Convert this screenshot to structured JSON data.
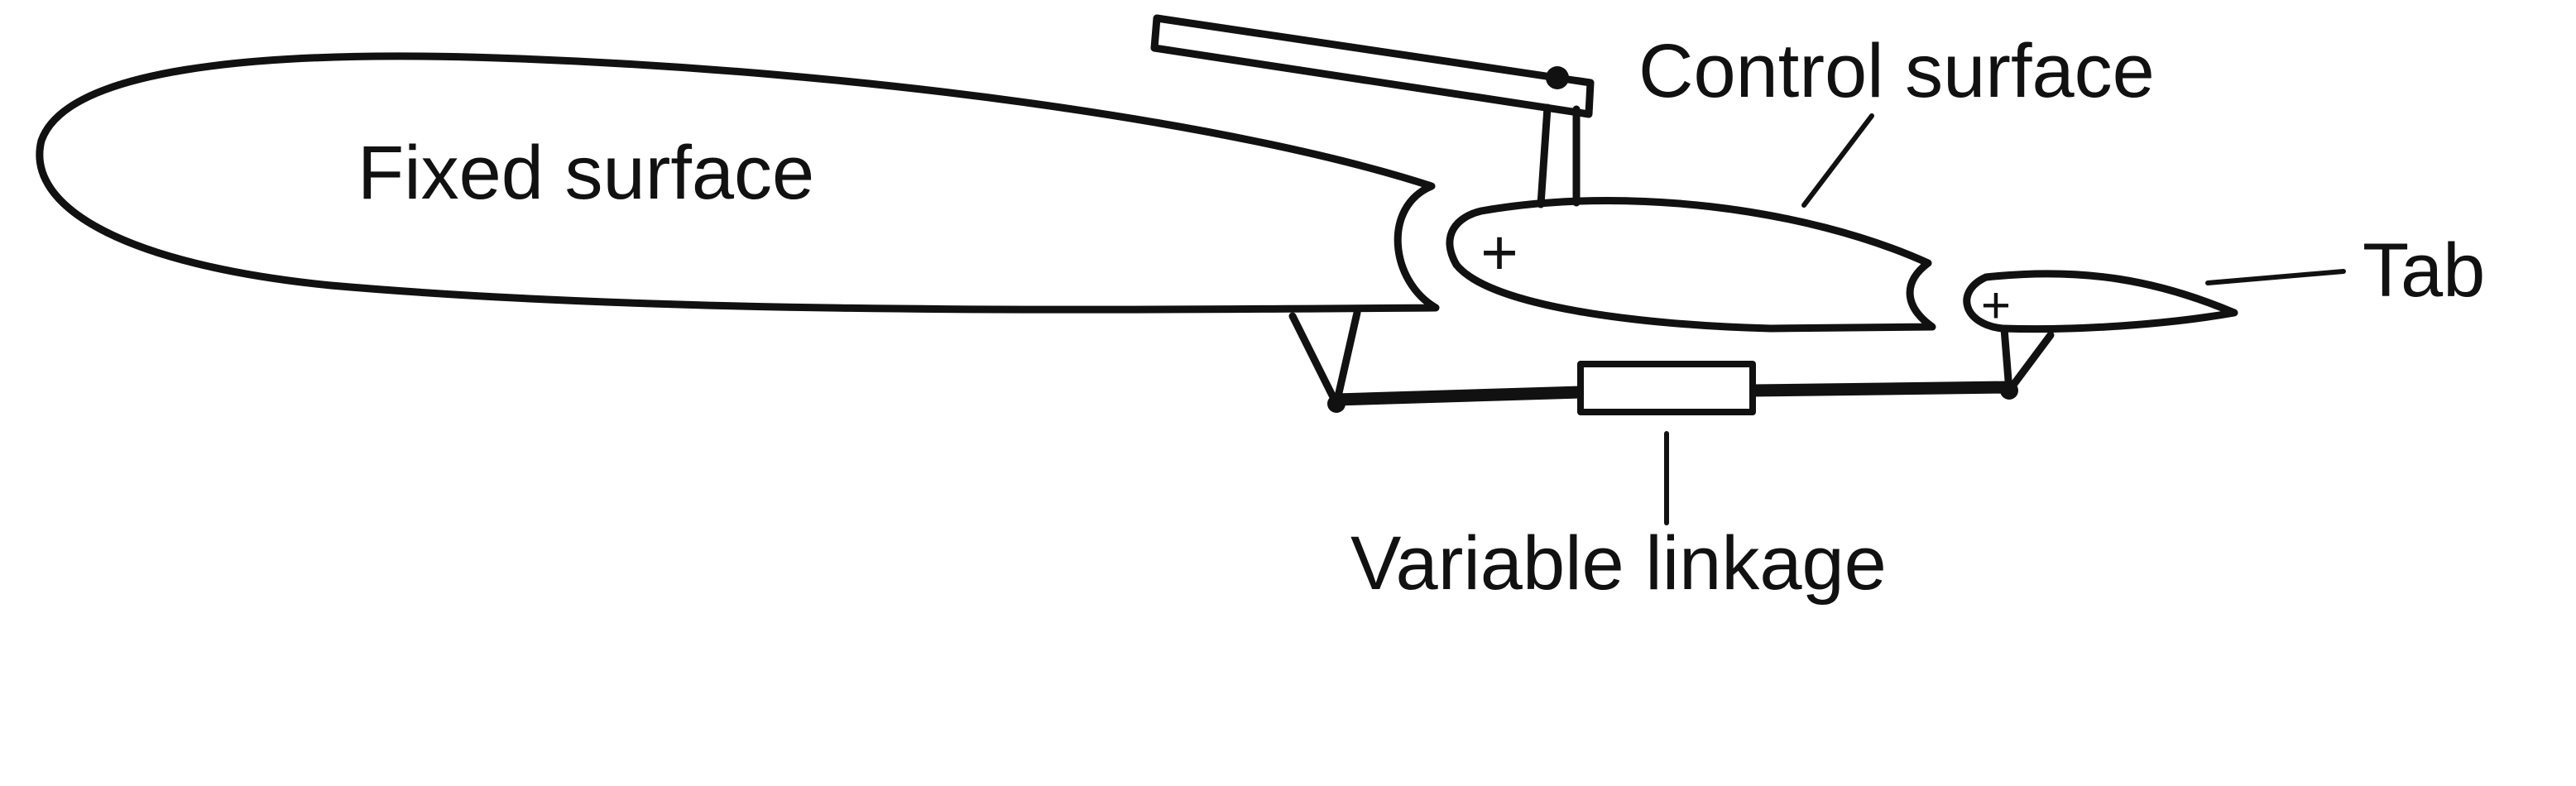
{
  "diagram": {
    "labels": {
      "fixed_surface": "Fixed surface",
      "control_surface": "Control surface",
      "tab": "Tab",
      "variable_linkage": "Variable linkage"
    },
    "hinge_markers": {
      "control_surface": "+",
      "tab": "+"
    }
  }
}
